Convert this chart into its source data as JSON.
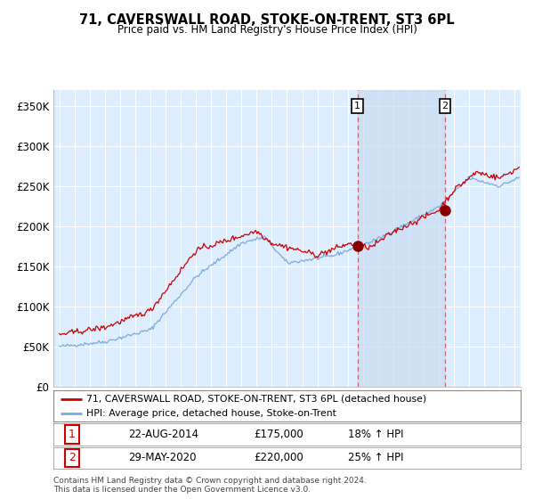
{
  "title": "71, CAVERSWALL ROAD, STOKE-ON-TRENT, ST3 6PL",
  "subtitle": "Price paid vs. HM Land Registry's House Price Index (HPI)",
  "ylabel_ticks": [
    "£0",
    "£50K",
    "£100K",
    "£150K",
    "£200K",
    "£250K",
    "£300K",
    "£350K"
  ],
  "ytick_vals": [
    0,
    50000,
    100000,
    150000,
    200000,
    250000,
    300000,
    350000
  ],
  "ylim": [
    0,
    370000
  ],
  "xlim_start": 1994.6,
  "xlim_end": 2025.4,
  "marker1_x": 2014.64,
  "marker1_y": 175000,
  "marker2_x": 2020.42,
  "marker2_y": 220000,
  "annotation1": [
    "1",
    "22-AUG-2014",
    "£175,000",
    "18% ↑ HPI"
  ],
  "annotation2": [
    "2",
    "29-MAY-2020",
    "£220,000",
    "25% ↑ HPI"
  ],
  "legend_line1": "71, CAVERSWALL ROAD, STOKE-ON-TRENT, ST3 6PL (detached house)",
  "legend_line2": "HPI: Average price, detached house, Stoke-on-Trent",
  "footer": "Contains HM Land Registry data © Crown copyright and database right 2024.\nThis data is licensed under the Open Government Licence v3.0.",
  "red_color": "#cc0000",
  "blue_color": "#7aabdc",
  "shade_color": "#ddeeff",
  "background_color": "#ddeeff",
  "grid_color": "#ffffff"
}
